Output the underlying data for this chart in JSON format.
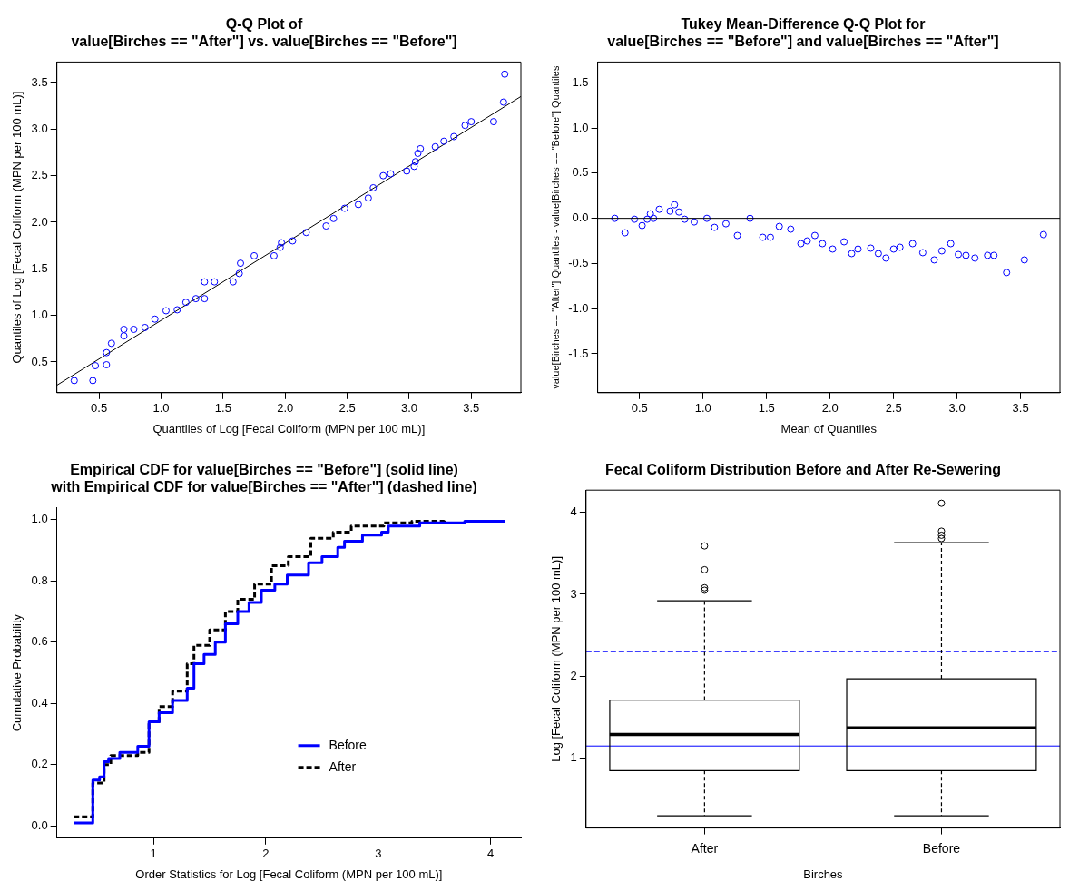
{
  "chart_data": [
    {
      "type": "scatter",
      "title": "Q-Q Plot of\nvalue[Birches == \"After\"] vs. value[Birches == \"Before\"]",
      "xlabel": "Quantiles of Log [Fecal Coliform (MPN per 100 mL)]",
      "ylabel": "Quantiles of Log [Fecal Coliform (MPN per 100 mL)]",
      "xlim": [
        0.16,
        3.9
      ],
      "ylim": [
        0.17,
        3.72
      ],
      "xticks": [
        0.5,
        {
          "value": 1,
          "label": "1.0"
        },
        1.5,
        {
          "value": 2,
          "label": "2.0"
        },
        2.5,
        {
          "value": 3,
          "label": "3.0"
        },
        3.5
      ],
      "yticks": [
        0.5,
        {
          "value": 1,
          "label": "1.0"
        },
        1.5,
        {
          "value": 2,
          "label": "2.0"
        },
        2.5,
        {
          "value": 3,
          "label": "3.0"
        },
        3.5
      ],
      "grid": false,
      "marker": "circle",
      "series": [
        {
          "color": "#0000ff",
          "x": [
            0.3,
            0.45,
            0.47,
            0.56,
            0.56,
            0.6,
            0.7,
            0.7,
            0.78,
            0.87,
            0.95,
            1.04,
            1.13,
            1.2,
            1.28,
            1.35,
            1.35,
            1.43,
            1.58,
            1.63,
            1.64,
            1.75,
            1.91,
            1.96,
            1.97,
            2.06,
            2.17,
            2.33,
            2.39,
            2.48,
            2.59,
            2.67,
            2.71,
            2.79,
            2.85,
            2.98,
            3.04,
            3.05,
            3.07,
            3.09,
            3.21,
            3.28,
            3.36,
            3.45,
            3.5,
            3.68,
            3.76,
            3.77
          ],
          "values": [
            0.3,
            0.3,
            0.46,
            0.47,
            0.6,
            0.7,
            0.78,
            0.85,
            0.85,
            0.87,
            0.96,
            1.05,
            1.06,
            1.14,
            1.18,
            1.18,
            1.36,
            1.36,
            1.36,
            1.45,
            1.56,
            1.64,
            1.64,
            1.73,
            1.78,
            1.8,
            1.89,
            1.96,
            2.04,
            2.15,
            2.19,
            2.26,
            2.37,
            2.5,
            2.52,
            2.55,
            2.6,
            2.65,
            2.74,
            2.79,
            2.81,
            2.87,
            2.92,
            3.04,
            3.08,
            3.08,
            3.29,
            3.59
          ]
        },
        {
          "type": "line",
          "color": "#000000",
          "marker": "none",
          "x": [
            0.16,
            3.9
          ],
          "values": [
            0.25,
            3.35
          ]
        }
      ]
    },
    {
      "type": "scatter",
      "title": "Tukey Mean-Difference Q-Q Plot for\nvalue[Birches == \"Before\"] and value[Birches == \"After\"]",
      "xlabel": "Mean of Quantiles",
      "ylabel": "value[Birches == \"After\"] Quantiles - value[Birches == \"Before\"] Quantiles",
      "xlim": [
        0.17,
        3.81
      ],
      "ylim": [
        -1.93,
        1.73
      ],
      "xticks": [
        0.5,
        {
          "value": 1,
          "label": "1.0"
        },
        1.5,
        {
          "value": 2,
          "label": "2.0"
        },
        2.5,
        {
          "value": 3,
          "label": "3.0"
        },
        3.5
      ],
      "yticks": [
        -1.5,
        {
          "value": -1,
          "label": "-1.0"
        },
        -0.5,
        {
          "value": 0,
          "label": "0.0"
        },
        0.5,
        {
          "value": 1,
          "label": "1.0"
        },
        1.5
      ],
      "grid": false,
      "marker": "circle",
      "ref_lines": [
        {
          "axis": "y",
          "value": 0,
          "color": "#000000"
        }
      ],
      "series": [
        {
          "color": "#0000ff",
          "x": [
            0.305,
            0.385,
            0.46,
            0.52,
            0.56,
            0.585,
            0.61,
            0.655,
            0.74,
            0.775,
            0.81,
            0.855,
            0.93,
            1.03,
            1.09,
            1.18,
            1.27,
            1.37,
            1.47,
            1.53,
            1.6,
            1.69,
            1.77,
            1.82,
            1.88,
            1.94,
            2.02,
            2.11,
            2.17,
            2.22,
            2.32,
            2.38,
            2.44,
            2.5,
            2.55,
            2.65,
            2.73,
            2.82,
            2.88,
            2.95,
            3.01,
            3.07,
            3.14,
            3.24,
            3.29,
            3.39,
            3.53,
            3.68
          ],
          "values": [
            0,
            -0.16,
            -0.01,
            -0.08,
            -0.01,
            0.05,
            0,
            0.1,
            0.08,
            0.15,
            0.07,
            -0.01,
            -0.04,
            0,
            -0.1,
            -0.06,
            -0.19,
            0,
            -0.21,
            -0.21,
            -0.09,
            -0.12,
            -0.28,
            -0.25,
            -0.19,
            -0.28,
            -0.34,
            -0.26,
            -0.39,
            -0.34,
            -0.33,
            -0.39,
            -0.44,
            -0.34,
            -0.32,
            -0.28,
            -0.38,
            -0.46,
            -0.36,
            -0.28,
            -0.4,
            -0.41,
            -0.44,
            -0.41,
            -0.41,
            -0.6,
            -0.46,
            -0.18
          ]
        }
      ]
    },
    {
      "type": "step",
      "title": "Empirical CDF for value[Birches == \"Before\"] (solid line)\nwith Empirical CDF for value[Birches == \"After\"] (dashed line)",
      "xlabel": "Order Statistics for Log [Fecal Coliform (MPN per 100 mL)]",
      "ylabel": "Cumulative Probability",
      "xlim": [
        0.14,
        4.27
      ],
      "ylim": [
        -0.04,
        1.04
      ],
      "xticks": [
        1,
        2,
        3,
        4
      ],
      "yticks": [
        {
          "value": 0,
          "label": "0.0"
        },
        0.2,
        0.4,
        0.6,
        0.8,
        {
          "value": 1,
          "label": "1.0"
        }
      ],
      "grid": false,
      "legend": "center",
      "marker": "none",
      "series": [
        {
          "name": "Before",
          "color": "#0000ff",
          "line_style": "solid",
          "x": [
            0.29,
            0.46,
            0.52,
            0.56,
            0.6,
            0.7,
            0.86,
            0.96,
            1.05,
            1.17,
            1.3,
            1.36,
            1.45,
            1.55,
            1.64,
            1.75,
            1.85,
            1.96,
            2.08,
            2.19,
            2.38,
            2.5,
            2.64,
            2.7,
            2.86,
            3.03,
            3.09,
            3.37,
            3.77,
            4.12
          ],
          "values": [
            0.01,
            0.15,
            0.16,
            0.21,
            0.22,
            0.24,
            0.26,
            0.34,
            0.37,
            0.41,
            0.45,
            0.53,
            0.56,
            0.6,
            0.66,
            0.7,
            0.73,
            0.77,
            0.79,
            0.82,
            0.86,
            0.88,
            0.91,
            0.93,
            0.95,
            0.96,
            0.98,
            0.99,
            0.995,
            1
          ]
        },
        {
          "name": "After",
          "color": "#000000",
          "line_style": "dashed",
          "x": [
            0.29,
            0.46,
            0.56,
            0.62,
            0.86,
            0.96,
            1.05,
            1.17,
            1.3,
            1.36,
            1.5,
            1.64,
            1.75,
            1.9,
            2.05,
            2.2,
            2.4,
            2.6,
            2.76,
            3.05,
            3.3,
            3.59
          ],
          "values": [
            0.03,
            0.14,
            0.2,
            0.23,
            0.24,
            0.34,
            0.39,
            0.44,
            0.53,
            0.59,
            0.64,
            0.7,
            0.74,
            0.79,
            0.85,
            0.88,
            0.94,
            0.96,
            0.98,
            0.99,
            0.995,
            1
          ]
        }
      ]
    },
    {
      "type": "box",
      "title": "Fecal Coliform Distribution Before and After Re-Sewering",
      "xlabel": "Birches",
      "ylabel": "Log [Fecal Coliform (MPN per 100 mL)]",
      "categories": [
        "After",
        "Before"
      ],
      "ylim": [
        0.15,
        4.27
      ],
      "yticks": [
        1,
        2,
        3,
        4
      ],
      "grid": false,
      "color": "#000000",
      "boxes": [
        {
          "low": 0.3,
          "q1": 0.85,
          "median": 1.29,
          "q3": 1.71,
          "high": 2.92,
          "outliers": [
            3.59,
            3.3,
            3.08,
            3.05
          ]
        },
        {
          "low": 0.3,
          "q1": 0.85,
          "median": 1.37,
          "q3": 1.97,
          "high": 3.63,
          "outliers": [
            4.11,
            3.77,
            3.72,
            3.68
          ]
        }
      ],
      "ref_lines": [
        {
          "axis": "y",
          "value": 2.3,
          "color": "#0000ff",
          "line_style": "dashed"
        },
        {
          "axis": "y",
          "value": 1.15,
          "color": "#0000ff",
          "line_style": "solid"
        }
      ]
    }
  ]
}
